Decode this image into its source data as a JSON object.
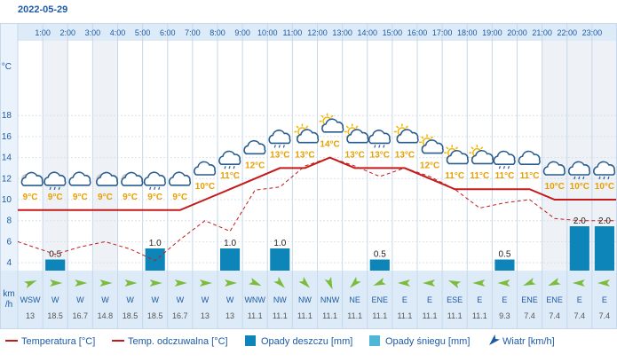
{
  "date": "2022-05-29",
  "chart_data": {
    "type": "line",
    "hours": [
      "1:00",
      "2:00",
      "3:00",
      "4:00",
      "5:00",
      "6:00",
      "7:00",
      "8:00",
      "9:00",
      "10:00",
      "11:00",
      "12:00",
      "13:00",
      "14:00",
      "15:00",
      "16:00",
      "17:00",
      "18:00",
      "19:00",
      "20:00",
      "21:00",
      "22:00",
      "23:00"
    ],
    "y_unit": "°C",
    "y_ticks": [
      4,
      6,
      8,
      10,
      12,
      14,
      16,
      18
    ],
    "temperature": [
      9,
      9,
      9,
      9,
      9,
      9,
      9,
      10,
      11,
      12,
      13,
      13,
      14,
      13,
      13,
      13,
      12,
      11,
      11,
      11,
      11,
      10,
      10,
      10
    ],
    "feels_like": [
      6,
      4.8,
      5.5,
      6,
      5.3,
      4.2,
      6.2,
      8,
      7,
      10.9,
      11.2,
      13.2,
      14,
      13.2,
      12.2,
      13,
      12.2,
      11,
      9.2,
      9.7,
      10,
      8.2,
      8,
      8
    ],
    "temperature_labels": [
      "9°C",
      "9°C",
      "9°C",
      "9°C",
      "9°C",
      "9°C",
      "9°C",
      "10°C",
      "11°C",
      "12°C",
      "13°C",
      "13°C",
      "14°C",
      "13°C",
      "13°C",
      "13°C",
      "12°C",
      "11°C",
      "11°C",
      "11°C",
      "11°C",
      "10°C",
      "10°C",
      "10°C"
    ],
    "weather_icons": [
      "partly-cloudy-night",
      "rain-cloud",
      "cloud",
      "partly-cloudy-night",
      "partly-cloudy-night",
      "rain-cloud",
      "cloud",
      "cloud",
      "rain-cloud",
      "cloud",
      "rain-cloud",
      "sun-cloud",
      "sun-cloud",
      "sun-cloud",
      "rain-cloud",
      "sun-cloud",
      "sun-cloud",
      "sun-cloud",
      "sun-cloud",
      "rain-cloud",
      "cloud",
      "cloud",
      "rain-cloud",
      "rain-cloud"
    ],
    "rain_mm": [
      0,
      0.5,
      0,
      0,
      0,
      1.0,
      0,
      0,
      1.0,
      0,
      1.0,
      0,
      0,
      0,
      0.5,
      0,
      0,
      0,
      0,
      0.5,
      0,
      0,
      2.0,
      2.0
    ],
    "rain_labels": [
      "",
      "0.5",
      "",
      "",
      "",
      "1.0",
      "",
      "",
      "1.0",
      "",
      "1.0",
      "",
      "",
      "",
      "0.5",
      "",
      "",
      "",
      "",
      "0.5",
      "",
      "",
      "2.0",
      "2.0"
    ],
    "wind_dir": [
      "WSW",
      "W",
      "W",
      "W",
      "W",
      "W",
      "W",
      "W",
      "W",
      "WNW",
      "NW",
      "NW",
      "NNW",
      "NE",
      "ENE",
      "E",
      "E",
      "ESE",
      "E",
      "E",
      "ENE",
      "ENE",
      "E",
      "E"
    ],
    "wind_deg": [
      248,
      270,
      270,
      270,
      270,
      270,
      270,
      270,
      270,
      293,
      315,
      315,
      338,
      45,
      68,
      90,
      90,
      113,
      90,
      90,
      68,
      68,
      90,
      90
    ],
    "wind_speed": [
      "13",
      "18.5",
      "16.7",
      "14.8",
      "18.5",
      "18.5",
      "16.7",
      "13",
      "13",
      "11.1",
      "11.1",
      "11.1",
      "11.1",
      "11.1",
      "11.1",
      "11.1",
      "11.1",
      "11.1",
      "11.1",
      "9.3",
      "7.4",
      "7.4",
      "7.4",
      "7.4"
    ],
    "wind_unit": "km\n/h",
    "colors": {
      "temperature": "#c41a1a",
      "feels_like": "#c41a1a",
      "rain": "#0e85b9",
      "snow": "#4eb6d6",
      "axis": "#1d5aa5"
    }
  },
  "legend": {
    "temperature": "Temperatura [°C]",
    "feels_like": "Temp. odczuwalna [°C]",
    "rain": "Opady deszczu [mm]",
    "snow": "Opady śniegu [mm]",
    "wind": "Wiatr [km/h]"
  },
  "axis_unit": "°C",
  "wind_unit_km": "km",
  "wind_unit_h": "/h"
}
